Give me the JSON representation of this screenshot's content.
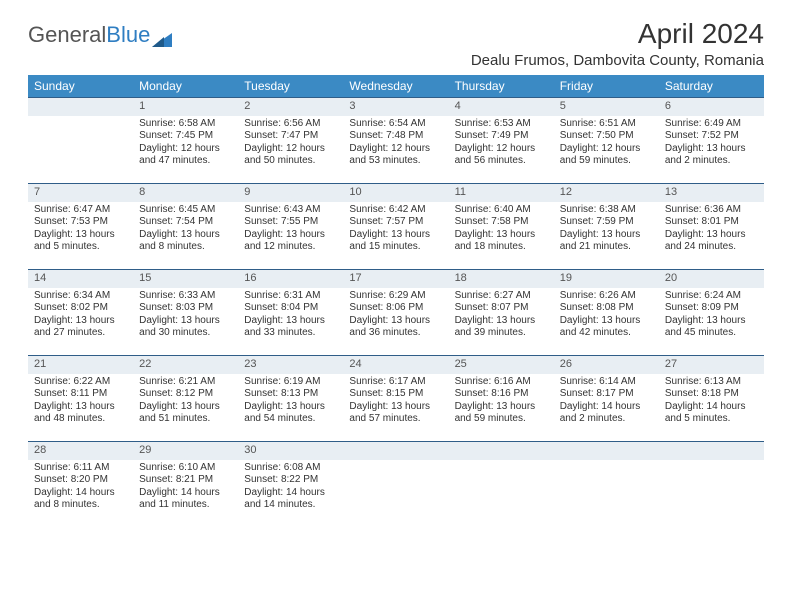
{
  "logo": {
    "general": "General",
    "blue": "Blue"
  },
  "title": "April 2024",
  "location": "Dealu Frumos, Dambovita County, Romania",
  "colors": {
    "header_bg": "#3b8ac4",
    "datebar_bg": "#e8eef3",
    "datebar_border": "#2f5d88",
    "text": "#333333"
  },
  "day_headers": [
    "Sunday",
    "Monday",
    "Tuesday",
    "Wednesday",
    "Thursday",
    "Friday",
    "Saturday"
  ],
  "weeks": [
    [
      {
        "date": "",
        "sunrise": "",
        "sunset": "",
        "dl1": "",
        "dl2": ""
      },
      {
        "date": "1",
        "sunrise": "Sunrise: 6:58 AM",
        "sunset": "Sunset: 7:45 PM",
        "dl1": "Daylight: 12 hours",
        "dl2": "and 47 minutes."
      },
      {
        "date": "2",
        "sunrise": "Sunrise: 6:56 AM",
        "sunset": "Sunset: 7:47 PM",
        "dl1": "Daylight: 12 hours",
        "dl2": "and 50 minutes."
      },
      {
        "date": "3",
        "sunrise": "Sunrise: 6:54 AM",
        "sunset": "Sunset: 7:48 PM",
        "dl1": "Daylight: 12 hours",
        "dl2": "and 53 minutes."
      },
      {
        "date": "4",
        "sunrise": "Sunrise: 6:53 AM",
        "sunset": "Sunset: 7:49 PM",
        "dl1": "Daylight: 12 hours",
        "dl2": "and 56 minutes."
      },
      {
        "date": "5",
        "sunrise": "Sunrise: 6:51 AM",
        "sunset": "Sunset: 7:50 PM",
        "dl1": "Daylight: 12 hours",
        "dl2": "and 59 minutes."
      },
      {
        "date": "6",
        "sunrise": "Sunrise: 6:49 AM",
        "sunset": "Sunset: 7:52 PM",
        "dl1": "Daylight: 13 hours",
        "dl2": "and 2 minutes."
      }
    ],
    [
      {
        "date": "7",
        "sunrise": "Sunrise: 6:47 AM",
        "sunset": "Sunset: 7:53 PM",
        "dl1": "Daylight: 13 hours",
        "dl2": "and 5 minutes."
      },
      {
        "date": "8",
        "sunrise": "Sunrise: 6:45 AM",
        "sunset": "Sunset: 7:54 PM",
        "dl1": "Daylight: 13 hours",
        "dl2": "and 8 minutes."
      },
      {
        "date": "9",
        "sunrise": "Sunrise: 6:43 AM",
        "sunset": "Sunset: 7:55 PM",
        "dl1": "Daylight: 13 hours",
        "dl2": "and 12 minutes."
      },
      {
        "date": "10",
        "sunrise": "Sunrise: 6:42 AM",
        "sunset": "Sunset: 7:57 PM",
        "dl1": "Daylight: 13 hours",
        "dl2": "and 15 minutes."
      },
      {
        "date": "11",
        "sunrise": "Sunrise: 6:40 AM",
        "sunset": "Sunset: 7:58 PM",
        "dl1": "Daylight: 13 hours",
        "dl2": "and 18 minutes."
      },
      {
        "date": "12",
        "sunrise": "Sunrise: 6:38 AM",
        "sunset": "Sunset: 7:59 PM",
        "dl1": "Daylight: 13 hours",
        "dl2": "and 21 minutes."
      },
      {
        "date": "13",
        "sunrise": "Sunrise: 6:36 AM",
        "sunset": "Sunset: 8:01 PM",
        "dl1": "Daylight: 13 hours",
        "dl2": "and 24 minutes."
      }
    ],
    [
      {
        "date": "14",
        "sunrise": "Sunrise: 6:34 AM",
        "sunset": "Sunset: 8:02 PM",
        "dl1": "Daylight: 13 hours",
        "dl2": "and 27 minutes."
      },
      {
        "date": "15",
        "sunrise": "Sunrise: 6:33 AM",
        "sunset": "Sunset: 8:03 PM",
        "dl1": "Daylight: 13 hours",
        "dl2": "and 30 minutes."
      },
      {
        "date": "16",
        "sunrise": "Sunrise: 6:31 AM",
        "sunset": "Sunset: 8:04 PM",
        "dl1": "Daylight: 13 hours",
        "dl2": "and 33 minutes."
      },
      {
        "date": "17",
        "sunrise": "Sunrise: 6:29 AM",
        "sunset": "Sunset: 8:06 PM",
        "dl1": "Daylight: 13 hours",
        "dl2": "and 36 minutes."
      },
      {
        "date": "18",
        "sunrise": "Sunrise: 6:27 AM",
        "sunset": "Sunset: 8:07 PM",
        "dl1": "Daylight: 13 hours",
        "dl2": "and 39 minutes."
      },
      {
        "date": "19",
        "sunrise": "Sunrise: 6:26 AM",
        "sunset": "Sunset: 8:08 PM",
        "dl1": "Daylight: 13 hours",
        "dl2": "and 42 minutes."
      },
      {
        "date": "20",
        "sunrise": "Sunrise: 6:24 AM",
        "sunset": "Sunset: 8:09 PM",
        "dl1": "Daylight: 13 hours",
        "dl2": "and 45 minutes."
      }
    ],
    [
      {
        "date": "21",
        "sunrise": "Sunrise: 6:22 AM",
        "sunset": "Sunset: 8:11 PM",
        "dl1": "Daylight: 13 hours",
        "dl2": "and 48 minutes."
      },
      {
        "date": "22",
        "sunrise": "Sunrise: 6:21 AM",
        "sunset": "Sunset: 8:12 PM",
        "dl1": "Daylight: 13 hours",
        "dl2": "and 51 minutes."
      },
      {
        "date": "23",
        "sunrise": "Sunrise: 6:19 AM",
        "sunset": "Sunset: 8:13 PM",
        "dl1": "Daylight: 13 hours",
        "dl2": "and 54 minutes."
      },
      {
        "date": "24",
        "sunrise": "Sunrise: 6:17 AM",
        "sunset": "Sunset: 8:15 PM",
        "dl1": "Daylight: 13 hours",
        "dl2": "and 57 minutes."
      },
      {
        "date": "25",
        "sunrise": "Sunrise: 6:16 AM",
        "sunset": "Sunset: 8:16 PM",
        "dl1": "Daylight: 13 hours",
        "dl2": "and 59 minutes."
      },
      {
        "date": "26",
        "sunrise": "Sunrise: 6:14 AM",
        "sunset": "Sunset: 8:17 PM",
        "dl1": "Daylight: 14 hours",
        "dl2": "and 2 minutes."
      },
      {
        "date": "27",
        "sunrise": "Sunrise: 6:13 AM",
        "sunset": "Sunset: 8:18 PM",
        "dl1": "Daylight: 14 hours",
        "dl2": "and 5 minutes."
      }
    ],
    [
      {
        "date": "28",
        "sunrise": "Sunrise: 6:11 AM",
        "sunset": "Sunset: 8:20 PM",
        "dl1": "Daylight: 14 hours",
        "dl2": "and 8 minutes."
      },
      {
        "date": "29",
        "sunrise": "Sunrise: 6:10 AM",
        "sunset": "Sunset: 8:21 PM",
        "dl1": "Daylight: 14 hours",
        "dl2": "and 11 minutes."
      },
      {
        "date": "30",
        "sunrise": "Sunrise: 6:08 AM",
        "sunset": "Sunset: 8:22 PM",
        "dl1": "Daylight: 14 hours",
        "dl2": "and 14 minutes."
      },
      {
        "date": "",
        "sunrise": "",
        "sunset": "",
        "dl1": "",
        "dl2": ""
      },
      {
        "date": "",
        "sunrise": "",
        "sunset": "",
        "dl1": "",
        "dl2": ""
      },
      {
        "date": "",
        "sunrise": "",
        "sunset": "",
        "dl1": "",
        "dl2": ""
      },
      {
        "date": "",
        "sunrise": "",
        "sunset": "",
        "dl1": "",
        "dl2": ""
      }
    ]
  ]
}
